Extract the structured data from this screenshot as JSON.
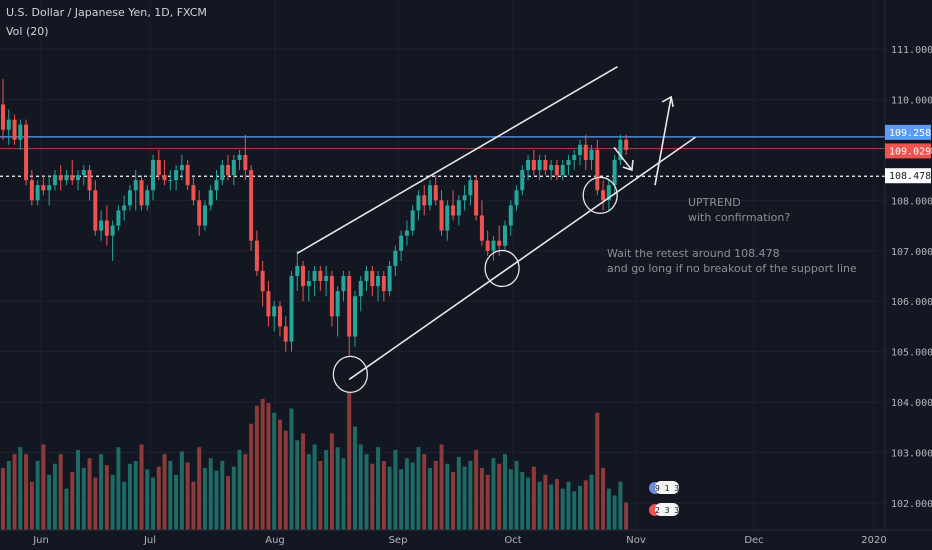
{
  "header": {
    "symbol_line": "U.S. Dollar / Japanese Yen, 1D, FXCM",
    "volume_label": "Vol (20)"
  },
  "colors": {
    "background": "#131722",
    "grid": "#1e2230",
    "up": "#26a69a",
    "down": "#ef5350",
    "vol_up": "#1d6b64",
    "vol_down": "#8c3a3a",
    "resistance": "#5b9cf6",
    "last_price": "#ef5350",
    "dotted_level": "#ffffff",
    "drawing": "#e8e8e8",
    "axis_text": "#b2b5be",
    "annotation_text": "#8c9096"
  },
  "axes": {
    "price_ticks": [
      "111.000",
      "110.000",
      "109.000",
      "108.000",
      "107.000",
      "106.000",
      "105.000",
      "104.000",
      "103.000",
      "102.000"
    ],
    "time_ticks": [
      "Jun",
      "Jul",
      "Aug",
      "Sep",
      "Oct",
      "Nov",
      "Dec",
      "2020"
    ]
  },
  "price_tags": [
    {
      "label": "109.258",
      "value": 109.258,
      "bg": "#5b9cf6",
      "fg": "#ffffff"
    },
    {
      "label": "109.029",
      "value": 109.029,
      "bg": "#ef5350",
      "fg": "#ffffff"
    },
    {
      "label": "108.478",
      "value": 108.478,
      "bg": "#ffffff",
      "fg": "#131722"
    }
  ],
  "annotations": {
    "uptrend_title": "UPTREND",
    "uptrend_sub": "with confirmation?",
    "retest_line1": "Wait the retest around 108.478",
    "retest_line2": "and go long if no breakout of the support line"
  },
  "event_badges": {
    "badge1": "9 1 3",
    "badge2": "2 3 3"
  },
  "chart_data": {
    "type": "candlestick",
    "price_range": [
      101.6,
      111.3
    ],
    "levels": {
      "resistance": 109.258,
      "last": 109.029,
      "support_retest": 108.478
    },
    "candles": [
      [
        109.9,
        110.4,
        109.2,
        109.4
      ],
      [
        109.4,
        109.8,
        109.1,
        109.6
      ],
      [
        109.6,
        109.7,
        109.1,
        109.2
      ],
      [
        109.2,
        109.6,
        109.0,
        109.5
      ],
      [
        109.5,
        109.6,
        108.3,
        108.4
      ],
      [
        108.4,
        108.6,
        107.9,
        108.0
      ],
      [
        108.0,
        108.4,
        107.9,
        108.3
      ],
      [
        108.3,
        108.5,
        108.1,
        108.2
      ],
      [
        108.2,
        108.5,
        107.9,
        108.3
      ],
      [
        108.3,
        108.6,
        108.2,
        108.5
      ],
      [
        108.5,
        108.7,
        108.2,
        108.4
      ],
      [
        108.4,
        108.6,
        108.3,
        108.5
      ],
      [
        108.5,
        108.8,
        108.3,
        108.4
      ],
      [
        108.4,
        108.6,
        108.2,
        108.5
      ],
      [
        108.5,
        108.7,
        108.3,
        108.6
      ],
      [
        108.6,
        108.7,
        108.0,
        108.2
      ],
      [
        108.2,
        108.4,
        107.3,
        107.4
      ],
      [
        107.4,
        107.8,
        107.2,
        107.6
      ],
      [
        107.6,
        107.9,
        107.1,
        107.3
      ],
      [
        107.3,
        107.6,
        106.8,
        107.5
      ],
      [
        107.5,
        107.9,
        107.4,
        107.8
      ],
      [
        107.8,
        108.1,
        107.6,
        107.9
      ],
      [
        107.9,
        108.3,
        107.8,
        108.2
      ],
      [
        108.2,
        108.6,
        107.8,
        108.4
      ],
      [
        108.4,
        108.5,
        107.8,
        107.9
      ],
      [
        107.9,
        108.3,
        107.8,
        108.2
      ],
      [
        108.2,
        108.9,
        108.0,
        108.8
      ],
      [
        108.8,
        109.0,
        108.4,
        108.5
      ],
      [
        108.5,
        108.8,
        108.3,
        108.4
      ],
      [
        108.4,
        108.6,
        108.2,
        108.4
      ],
      [
        108.4,
        108.7,
        108.2,
        108.6
      ],
      [
        108.6,
        108.9,
        108.4,
        108.7
      ],
      [
        108.7,
        108.8,
        108.2,
        108.3
      ],
      [
        108.3,
        108.5,
        107.9,
        108.0
      ],
      [
        108.0,
        108.2,
        107.3,
        107.5
      ],
      [
        107.5,
        108.0,
        107.4,
        107.9
      ],
      [
        107.9,
        108.3,
        107.8,
        108.2
      ],
      [
        108.2,
        108.6,
        108.0,
        108.4
      ],
      [
        108.4,
        108.8,
        108.3,
        108.7
      ],
      [
        108.7,
        108.9,
        108.4,
        108.5
      ],
      [
        108.5,
        108.9,
        108.3,
        108.8
      ],
      [
        108.8,
        109.0,
        108.6,
        108.9
      ],
      [
        108.9,
        109.3,
        108.4,
        108.6
      ],
      [
        108.6,
        108.7,
        107.0,
        107.2
      ],
      [
        107.2,
        107.4,
        106.5,
        106.6
      ],
      [
        106.6,
        106.8,
        105.9,
        106.2
      ],
      [
        106.2,
        106.4,
        105.5,
        105.7
      ],
      [
        105.7,
        106.0,
        105.4,
        105.9
      ],
      [
        105.9,
        106.0,
        105.3,
        105.5
      ],
      [
        105.5,
        105.7,
        105.0,
        105.2
      ],
      [
        105.2,
        106.6,
        105.0,
        106.5
      ],
      [
        106.5,
        107.0,
        106.2,
        106.7
      ],
      [
        106.7,
        106.8,
        106.0,
        106.3
      ],
      [
        106.3,
        106.6,
        106.0,
        106.4
      ],
      [
        106.4,
        106.7,
        106.1,
        106.6
      ],
      [
        106.6,
        106.7,
        106.2,
        106.4
      ],
      [
        106.4,
        106.7,
        106.1,
        106.5
      ],
      [
        106.5,
        106.6,
        105.5,
        105.7
      ],
      [
        105.7,
        106.3,
        105.3,
        106.2
      ],
      [
        106.2,
        106.6,
        106.0,
        106.5
      ],
      [
        106.5,
        106.6,
        104.9,
        105.3
      ],
      [
        105.3,
        106.2,
        105.1,
        106.1
      ],
      [
        106.1,
        106.5,
        105.8,
        106.4
      ],
      [
        106.4,
        106.7,
        106.2,
        106.6
      ],
      [
        106.6,
        106.7,
        106.1,
        106.3
      ],
      [
        106.3,
        106.6,
        106.0,
        106.5
      ],
      [
        106.5,
        106.6,
        106.0,
        106.2
      ],
      [
        106.2,
        106.8,
        106.1,
        106.7
      ],
      [
        106.7,
        107.1,
        106.5,
        107.0
      ],
      [
        107.0,
        107.4,
        106.8,
        107.3
      ],
      [
        107.3,
        107.6,
        107.1,
        107.4
      ],
      [
        107.4,
        107.9,
        107.3,
        107.8
      ],
      [
        107.8,
        108.2,
        107.6,
        108.1
      ],
      [
        108.1,
        108.3,
        107.7,
        107.9
      ],
      [
        107.9,
        108.4,
        107.8,
        108.3
      ],
      [
        108.3,
        108.5,
        107.9,
        108.0
      ],
      [
        108.0,
        108.2,
        107.3,
        107.4
      ],
      [
        107.4,
        108.0,
        107.2,
        107.9
      ],
      [
        107.9,
        108.2,
        107.6,
        107.7
      ],
      [
        107.7,
        108.1,
        107.5,
        108.0
      ],
      [
        108.0,
        108.3,
        107.8,
        108.1
      ],
      [
        108.1,
        108.5,
        107.9,
        108.4
      ],
      [
        108.4,
        108.5,
        107.6,
        107.7
      ],
      [
        107.7,
        108.0,
        107.1,
        107.2
      ],
      [
        107.2,
        107.4,
        106.9,
        107.0
      ],
      [
        107.0,
        107.3,
        106.8,
        107.2
      ],
      [
        107.2,
        107.5,
        106.9,
        107.1
      ],
      [
        107.1,
        107.6,
        107.0,
        107.5
      ],
      [
        107.5,
        108.0,
        107.3,
        107.9
      ],
      [
        107.9,
        108.3,
        107.8,
        108.2
      ],
      [
        108.2,
        108.7,
        108.1,
        108.6
      ],
      [
        108.6,
        108.9,
        108.4,
        108.8
      ],
      [
        108.8,
        109.0,
        108.5,
        108.6
      ],
      [
        108.6,
        108.9,
        108.4,
        108.8
      ],
      [
        108.8,
        108.9,
        108.5,
        108.6
      ],
      [
        108.6,
        108.8,
        108.4,
        108.7
      ],
      [
        108.7,
        108.8,
        108.4,
        108.5
      ],
      [
        108.5,
        108.8,
        108.4,
        108.7
      ],
      [
        108.7,
        108.9,
        108.5,
        108.8
      ],
      [
        108.8,
        109.0,
        108.6,
        108.9
      ],
      [
        108.9,
        109.2,
        108.7,
        109.1
      ],
      [
        109.1,
        109.3,
        108.6,
        108.8
      ],
      [
        108.8,
        109.1,
        108.6,
        109.0
      ],
      [
        109.0,
        109.2,
        108.1,
        108.2
      ],
      [
        108.2,
        108.4,
        107.8,
        108.0
      ],
      [
        108.0,
        108.4,
        107.8,
        108.3
      ],
      [
        108.3,
        108.9,
        108.1,
        108.8
      ],
      [
        108.8,
        109.3,
        108.7,
        109.2
      ],
      [
        109.2,
        109.3,
        108.9,
        109.0
      ]
    ],
    "volume": [
      0.45,
      0.5,
      0.55,
      0.6,
      0.55,
      0.35,
      0.5,
      0.62,
      0.4,
      0.48,
      0.55,
      0.3,
      0.42,
      0.58,
      0.45,
      0.52,
      0.38,
      0.55,
      0.47,
      0.4,
      0.6,
      0.35,
      0.48,
      0.5,
      0.62,
      0.44,
      0.38,
      0.46,
      0.55,
      0.5,
      0.4,
      0.57,
      0.49,
      0.35,
      0.6,
      0.45,
      0.52,
      0.43,
      0.5,
      0.39,
      0.46,
      0.58,
      0.55,
      0.77,
      0.9,
      0.95,
      0.92,
      0.85,
      0.8,
      0.72,
      0.88,
      0.65,
      0.7,
      0.55,
      0.62,
      0.5,
      0.58,
      0.7,
      0.6,
      0.52,
      1.0,
      0.75,
      0.62,
      0.55,
      0.48,
      0.6,
      0.5,
      0.46,
      0.58,
      0.44,
      0.52,
      0.49,
      0.6,
      0.55,
      0.45,
      0.5,
      0.62,
      0.48,
      0.42,
      0.53,
      0.46,
      0.5,
      0.58,
      0.45,
      0.4,
      0.52,
      0.48,
      0.55,
      0.44,
      0.5,
      0.42,
      0.38,
      0.46,
      0.35,
      0.4,
      0.33,
      0.37,
      0.3,
      0.35,
      0.28,
      0.32,
      0.36,
      0.4,
      0.85,
      0.45,
      0.3,
      0.25,
      0.35,
      0.2
    ],
    "trend_lines": [
      {
        "name": "channel-upper",
        "from": {
          "bar": 51,
          "price": 106.95
        },
        "to": {
          "bar": 106.5,
          "price": 110.65
        }
      },
      {
        "name": "channel-lower",
        "from": {
          "bar": 60,
          "price": 104.45
        },
        "to": {
          "bar": 120,
          "price": 109.25
        }
      },
      {
        "name": "projection-arrow",
        "from": {
          "bar": 113,
          "price": 108.3
        },
        "to": {
          "bar": 115.8,
          "price": 110.05
        }
      },
      {
        "name": "retest-arrow",
        "from": {
          "bar": 105.9,
          "price": 109.05
        },
        "to": {
          "bar": 109,
          "price": 108.6
        }
      }
    ],
    "circles": [
      {
        "bar": 60.2,
        "price": 104.55
      },
      {
        "bar": 86.5,
        "price": 106.65
      },
      {
        "bar": 103.5,
        "price": 108.1
      }
    ]
  }
}
